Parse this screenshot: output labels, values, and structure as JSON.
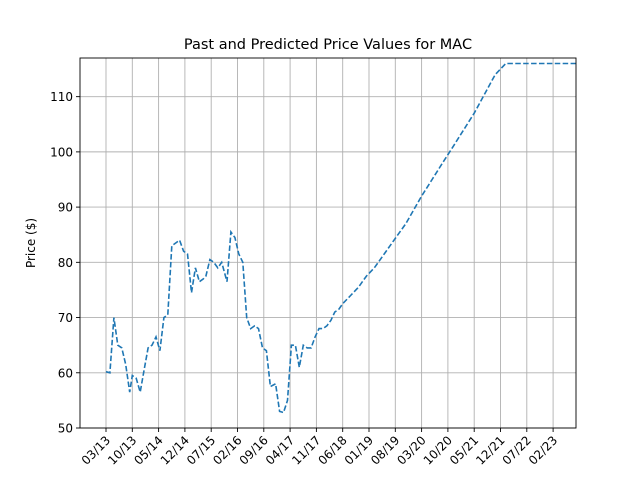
{
  "chart_data": {
    "type": "line",
    "title": "Past and Predicted Price Values for MAC",
    "xlabel": "",
    "ylabel": "Price ($)",
    "ylim": [
      50,
      117
    ],
    "yticks": [
      50,
      60,
      70,
      80,
      90,
      100,
      110
    ],
    "grid": true,
    "xtick_labels": [
      "03/13",
      "10/13",
      "05/14",
      "12/14",
      "07/15",
      "02/16",
      "09/16",
      "04/17",
      "11/17",
      "06/18",
      "01/19",
      "08/19",
      "03/20",
      "10/20",
      "05/21",
      "12/21",
      "07/22",
      "02/23"
    ],
    "series": [
      {
        "name": "MAC",
        "style": "dashed",
        "color": "#1f77b4",
        "x": [
          0,
          0.15,
          0.3,
          0.45,
          0.6,
          0.75,
          0.9,
          1.0,
          1.15,
          1.3,
          1.45,
          1.6,
          1.75,
          1.9,
          2.05,
          2.2,
          2.35,
          2.5,
          2.65,
          2.8,
          2.95,
          3.1,
          3.25,
          3.4,
          3.55,
          3.7,
          3.8,
          3.95,
          4.1,
          4.25,
          4.4,
          4.6,
          4.75,
          4.9,
          5.05,
          5.2,
          5.35,
          5.5,
          5.65,
          5.8,
          5.95,
          6.1,
          6.25,
          6.45,
          6.6,
          6.75,
          6.9,
          7.05,
          7.2,
          7.35,
          7.5,
          7.65,
          7.8,
          7.95,
          8.1,
          8.25,
          8.4,
          8.55,
          8.7,
          8.85,
          9.0,
          9.3,
          9.6,
          9.9,
          10.2,
          10.5,
          10.8,
          11.1,
          11.4,
          11.7,
          12.0,
          12.4,
          12.8,
          13.2,
          13.6,
          14.0,
          14.4,
          14.8,
          15.2,
          15.6,
          16.0,
          16.4,
          16.8,
          17.2,
          17.6,
          17.9
        ],
        "values": [
          60.2,
          60.0,
          70.0,
          65.0,
          64.5,
          61.5,
          56.5,
          59.5,
          59.0,
          56.5,
          60.5,
          64.5,
          65.0,
          66.5,
          64.0,
          70.0,
          70.5,
          83.0,
          83.5,
          84.0,
          82.0,
          81.5,
          74.5,
          79.0,
          76.5,
          77.0,
          77.5,
          80.5,
          80.0,
          79.0,
          80.0,
          76.5,
          85.5,
          84.5,
          81.5,
          80.0,
          70.0,
          68.0,
          68.5,
          68.0,
          64.5,
          64.0,
          57.5,
          58.0,
          53.0,
          52.8,
          55.0,
          65.0,
          65.0,
          61.0,
          65.0,
          64.5,
          64.5,
          66.5,
          68.0,
          68.0,
          68.5,
          69.5,
          71.0,
          71.5,
          72.5,
          74.0,
          75.5,
          77.5,
          79.0,
          81.0,
          83.0,
          85.0,
          87.0,
          89.5,
          92.0,
          95.0,
          98.0,
          101.0,
          104.0,
          107.0,
          110.5,
          114.0,
          117.0,
          118.0,
          118.0,
          118.0,
          118.0,
          118.0,
          118.0,
          118.0
        ]
      }
    ]
  }
}
